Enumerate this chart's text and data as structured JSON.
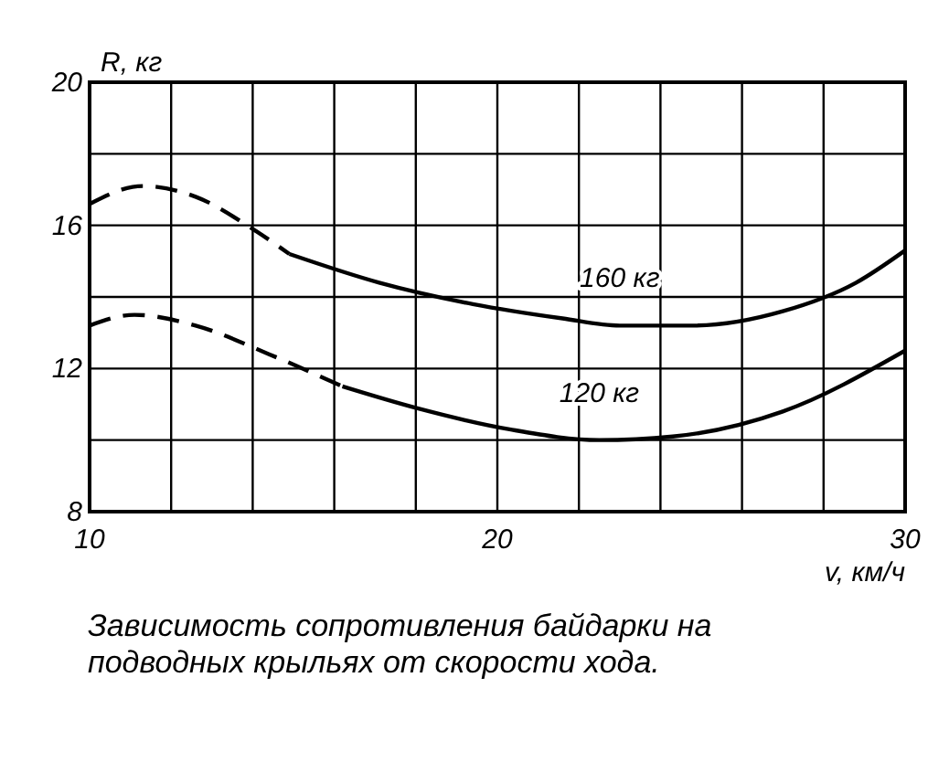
{
  "chart_data": {
    "type": "line",
    "xlabel": "v, км/ч",
    "ylabel": "R, кг",
    "xlim": [
      10,
      30
    ],
    "ylim": [
      8,
      20
    ],
    "xticks": [
      10,
      {
        "value": 12,
        "label": null
      },
      {
        "value": 14,
        "label": null
      },
      {
        "value": 16,
        "label": null
      },
      {
        "value": 18,
        "label": null
      },
      20,
      {
        "value": 22,
        "label": null
      },
      {
        "value": 24,
        "label": null
      },
      {
        "value": 26,
        "label": null
      },
      {
        "value": 28,
        "label": null
      },
      30
    ],
    "yticks": [
      8,
      {
        "value": 10,
        "label": null
      },
      12,
      {
        "value": 14,
        "label": null
      },
      16,
      {
        "value": 18,
        "label": null
      },
      20
    ],
    "grid": true,
    "line_style": "solid",
    "marker": "none",
    "series": [
      {
        "color": "#000000",
        "line_style": "dashed",
        "x": [
          10,
          11.3,
          12.6,
          14,
          14.9
        ],
        "values": [
          16.6,
          17.1,
          16.8,
          15.9,
          15.2
        ]
      },
      {
        "name": "160 кг",
        "color": "#000000",
        "x": [
          14.9,
          17.1,
          19.4,
          21.6,
          23,
          24.8,
          27,
          28.8,
          30
        ],
        "values": [
          15.2,
          14.4,
          13.8,
          13.4,
          13.2,
          13.2,
          13.6,
          14.4,
          15.3
        ]
      },
      {
        "color": "#000000",
        "line_style": "dashed",
        "x": [
          10,
          11.1,
          12.6,
          14.4,
          16.2
        ],
        "values": [
          13.2,
          13.5,
          13.2,
          12.4,
          11.5
        ]
      },
      {
        "name": "120 кг",
        "color": "#000000",
        "x": [
          16.2,
          18,
          20.3,
          22.5,
          24.3,
          27,
          30
        ],
        "values": [
          11.5,
          10.9,
          10.3,
          10,
          10.1,
          10.8,
          12.5
        ]
      }
    ],
    "annotations": [
      "Зависимость сопротивления байдарки на подводных крыльях от скорости хода."
    ]
  }
}
